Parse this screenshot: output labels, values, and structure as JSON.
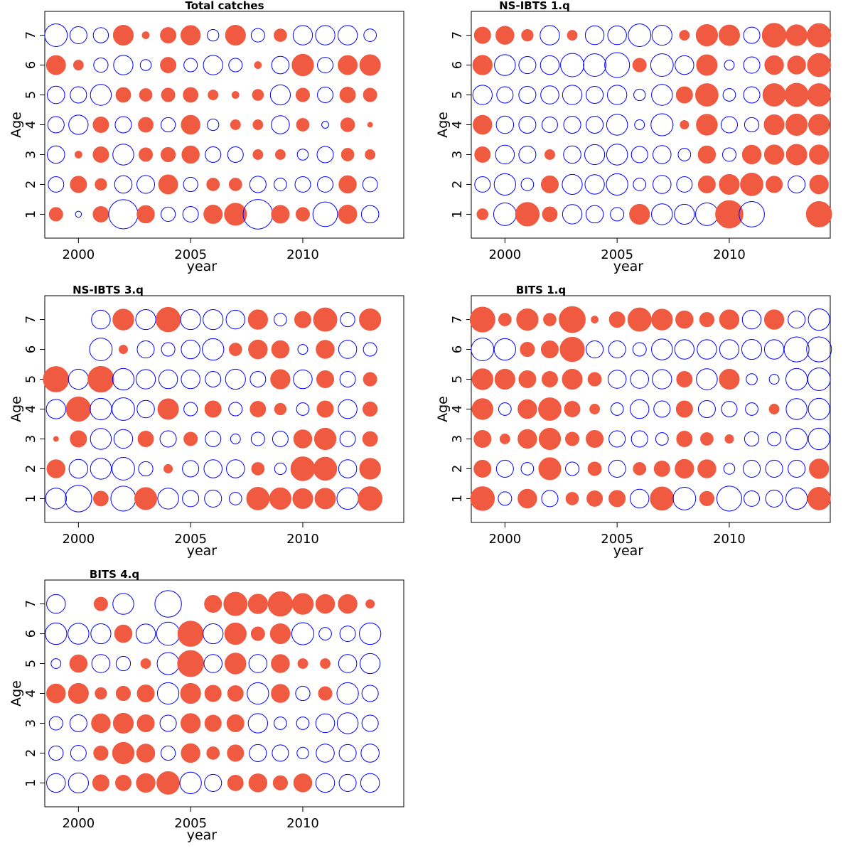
{
  "colors": {
    "positive": "#ef5a41",
    "negative": "#0000ff"
  },
  "chart_data": [
    {
      "type": "scatter",
      "title": "Total catches",
      "xlabel": "year",
      "ylabel": "Age",
      "xlim": [
        1998.5,
        2014.5
      ],
      "ylim": [
        0.2,
        7.8
      ],
      "xticks": [
        2000,
        2005,
        2010
      ],
      "yticks": [
        1,
        2,
        3,
        4,
        5,
        6,
        7
      ],
      "years": [
        1999,
        2000,
        2001,
        2002,
        2003,
        2004,
        2005,
        2006,
        2007,
        2008,
        2009,
        2010,
        2011,
        2012,
        2013
      ],
      "ages": [
        1,
        2,
        3,
        4,
        5,
        6,
        7
      ],
      "residuals": [
        [
          0.15,
          -0.03,
          0.2,
          -0.7,
          0.25,
          -0.17,
          -0.2,
          0.28,
          0.4,
          -0.72,
          0.26,
          0.15,
          -0.5,
          0.28,
          -0.25
        ],
        [
          -0.2,
          0.22,
          0.11,
          -0.25,
          -0.26,
          0.3,
          -0.17,
          0.13,
          0.13,
          -0.22,
          -0.13,
          -0.2,
          -0.2,
          0.25,
          -0.18
        ],
        [
          -0.25,
          0.04,
          0.2,
          -0.36,
          0.15,
          0.17,
          0.25,
          -0.2,
          -0.2,
          0.08,
          0.08,
          -0.1,
          -0.22,
          0.13,
          0.08
        ],
        [
          -0.22,
          -0.31,
          0.2,
          -0.22,
          0.18,
          -0.17,
          0.29,
          -0.11,
          0.08,
          0.08,
          -0.27,
          0.13,
          -0.04,
          0.16,
          0.02
        ],
        [
          -0.25,
          -0.22,
          -0.36,
          0.18,
          0.13,
          0.15,
          0.18,
          0.08,
          0.04,
          0.1,
          -0.33,
          0.15,
          -0.2,
          0.2,
          0.15
        ],
        [
          0.3,
          0.08,
          -0.17,
          -0.31,
          -0.1,
          0.2,
          -0.15,
          -0.31,
          -0.15,
          0.04,
          -0.25,
          0.38,
          -0.2,
          0.3,
          0.35
        ],
        [
          -0.42,
          -0.24,
          -0.19,
          0.33,
          0.04,
          0.2,
          0.31,
          -0.11,
          0.33,
          -0.15,
          0.13,
          -0.31,
          -0.31,
          -0.31,
          -0.13
        ]
      ]
    },
    {
      "type": "scatter",
      "title": "NS-IBTS 1.q",
      "xlabel": "year",
      "ylabel": "Age",
      "xlim": [
        1998.5,
        2014.5
      ],
      "ylim": [
        0.2,
        7.8
      ],
      "xticks": [
        2000,
        2005,
        2010
      ],
      "yticks": [
        1,
        2,
        3,
        4,
        5,
        6,
        7
      ],
      "years": [
        1999,
        2000,
        2001,
        2002,
        2003,
        2004,
        2005,
        2006,
        2007,
        2008,
        2009,
        2010,
        2011,
        2012,
        2013,
        2014
      ],
      "ages": [
        1,
        2,
        3,
        4,
        5,
        6,
        7
      ],
      "residuals": [
        [
          0.1,
          -0.42,
          0.46,
          0.18,
          -0.31,
          -0.25,
          -0.15,
          0.33,
          -0.36,
          -0.33,
          -0.42,
          0.62,
          -0.53,
          null,
          null,
          0.53
        ],
        [
          -0.2,
          -0.38,
          -0.13,
          0.24,
          -0.33,
          -0.31,
          -0.38,
          -0.13,
          -0.27,
          -0.2,
          0.24,
          0.33,
          0.42,
          0.22,
          -0.24,
          0.29
        ],
        [
          0.2,
          -0.29,
          -0.24,
          0.08,
          -0.25,
          -0.33,
          -0.36,
          -0.22,
          -0.27,
          -0.13,
          0.25,
          -0.15,
          0.29,
          0.31,
          0.35,
          0.31
        ],
        [
          0.29,
          -0.25,
          -0.24,
          -0.2,
          -0.24,
          -0.24,
          -0.36,
          -0.08,
          -0.4,
          0.06,
          0.36,
          -0.22,
          -0.17,
          0.33,
          0.38,
          0.36
        ],
        [
          -0.31,
          -0.22,
          -0.24,
          -0.27,
          -0.31,
          -0.24,
          -0.31,
          -0.11,
          -0.36,
          0.22,
          0.42,
          -0.13,
          -0.22,
          0.42,
          0.45,
          0.42
        ],
        [
          0.31,
          -0.36,
          -0.24,
          -0.29,
          -0.45,
          -0.42,
          -0.51,
          0.15,
          -0.42,
          -0.29,
          0.35,
          -0.08,
          -0.22,
          0.29,
          0.27,
          0.44
        ],
        [
          0.22,
          0.27,
          0.11,
          -0.31,
          0.08,
          -0.29,
          -0.29,
          -0.42,
          -0.33,
          0.08,
          0.38,
          0.35,
          -0.22,
          0.47,
          0.36,
          0.45
        ]
      ]
    },
    {
      "type": "scatter",
      "title": "NS-IBTS 3.q",
      "xlabel": "year",
      "ylabel": "Age",
      "xlim": [
        1998.5,
        2014.5
      ],
      "ylim": [
        0.2,
        7.8
      ],
      "xticks": [
        2000,
        2005,
        2010
      ],
      "yticks": [
        1,
        2,
        3,
        4,
        5,
        6,
        7
      ],
      "years": [
        1999,
        2000,
        2001,
        2002,
        2003,
        2004,
        2005,
        2006,
        2007,
        2008,
        2009,
        2010,
        2011,
        2012,
        2013
      ],
      "ages": [
        1,
        2,
        3,
        4,
        5,
        6,
        7
      ],
      "residuals": [
        [
          -0.36,
          -0.58,
          0.18,
          -0.51,
          0.4,
          -0.36,
          -0.22,
          -0.24,
          -0.13,
          0.42,
          0.38,
          0.33,
          0.35,
          -0.38,
          0.47
        ],
        [
          0.27,
          -0.29,
          -0.36,
          -0.42,
          -0.17,
          0.06,
          -0.22,
          -0.27,
          -0.27,
          0.13,
          -0.11,
          0.47,
          0.44,
          -0.27,
          0.36
        ],
        [
          0.02,
          0.22,
          -0.36,
          -0.29,
          0.2,
          -0.22,
          0.15,
          -0.2,
          -0.08,
          -0.15,
          -0.2,
          0.27,
          0.38,
          -0.2,
          0.18
        ],
        [
          -0.31,
          0.49,
          -0.38,
          -0.42,
          -0.25,
          0.35,
          -0.15,
          0.22,
          -0.15,
          0.2,
          0.11,
          -0.13,
          0.22,
          -0.29,
          0.17
        ],
        [
          0.53,
          -0.33,
          0.55,
          -0.38,
          -0.31,
          -0.29,
          -0.29,
          -0.2,
          -0.33,
          -0.2,
          0.31,
          -0.29,
          0.24,
          -0.2,
          0.15
        ],
        [
          null,
          null,
          -0.42,
          0.06,
          -0.24,
          -0.15,
          -0.29,
          -0.38,
          0.13,
          0.29,
          0.25,
          -0.08,
          0.27,
          -0.27,
          -0.15
        ],
        [
          null,
          null,
          -0.29,
          0.36,
          -0.33,
          0.49,
          -0.33,
          -0.33,
          -0.29,
          0.31,
          -0.13,
          0.22,
          0.45,
          -0.17,
          0.38
        ]
      ]
    },
    {
      "type": "scatter",
      "title": "BITS 1.q",
      "xlabel": "year",
      "ylabel": "Age",
      "xlim": [
        1998.5,
        2014.5
      ],
      "ylim": [
        0.2,
        7.8
      ],
      "xticks": [
        2000,
        2005,
        2010
      ],
      "yticks": [
        1,
        2,
        3,
        4,
        5,
        6,
        7
      ],
      "years": [
        1999,
        2000,
        2001,
        2002,
        2003,
        2004,
        2005,
        2006,
        2007,
        2008,
        2009,
        2010,
        2011,
        2012,
        2013,
        2014
      ],
      "ages": [
        1,
        2,
        3,
        4,
        5,
        6,
        7
      ],
      "residuals": [
        [
          0.47,
          -0.15,
          0.29,
          -0.22,
          0.13,
          0.2,
          0.22,
          -0.29,
          0.45,
          -0.42,
          0.17,
          -0.51,
          -0.2,
          -0.24,
          -0.38,
          0.42
        ],
        [
          0.24,
          -0.24,
          -0.13,
          0.4,
          -0.15,
          0.15,
          -0.24,
          0.13,
          0.2,
          0.29,
          0.27,
          -0.1,
          -0.24,
          -0.24,
          -0.24,
          0.31
        ],
        [
          0.24,
          0.08,
          0.29,
          0.38,
          0.15,
          0.24,
          -0.22,
          -0.22,
          -0.13,
          0.2,
          0.13,
          0.06,
          -0.17,
          -0.15,
          -0.38,
          -0.38
        ],
        [
          0.36,
          -0.13,
          0.29,
          0.42,
          0.2,
          0.08,
          -0.13,
          -0.29,
          -0.22,
          0.22,
          -0.24,
          -0.2,
          -0.13,
          0.08,
          -0.36,
          -0.38
        ],
        [
          0.36,
          0.33,
          0.24,
          0.2,
          0.33,
          0.15,
          -0.27,
          -0.27,
          -0.31,
          0.2,
          -0.36,
          0.33,
          -0.1,
          -0.08,
          -0.38,
          -0.42
        ],
        [
          -0.42,
          -0.38,
          0.17,
          0.24,
          0.49,
          -0.24,
          -0.24,
          -0.15,
          -0.36,
          -0.31,
          -0.31,
          -0.31,
          -0.33,
          -0.31,
          -0.51,
          -0.51
        ],
        [
          0.51,
          0.13,
          0.38,
          0.13,
          0.56,
          0.04,
          0.2,
          0.45,
          0.36,
          0.25,
          0.17,
          0.31,
          -0.29,
          0.31,
          -0.24,
          -0.38
        ]
      ]
    },
    {
      "type": "scatter",
      "title": "BITS 4.q",
      "xlabel": "year",
      "ylabel": "Age",
      "xlim": [
        1998.5,
        2014.5
      ],
      "ylim": [
        0.2,
        7.8
      ],
      "xticks": [
        2000,
        2005,
        2010
      ],
      "yticks": [
        1,
        2,
        3,
        4,
        5,
        6,
        7
      ],
      "years": [
        1999,
        2000,
        2001,
        2002,
        2003,
        2004,
        2005,
        2006,
        2007,
        2008,
        2009,
        2010,
        2011,
        2012,
        2013
      ],
      "ages": [
        1,
        2,
        3,
        4,
        5,
        6,
        7
      ],
      "residuals": [
        [
          -0.29,
          -0.33,
          0.22,
          0.2,
          0.29,
          0.42,
          -0.38,
          -0.24,
          0.2,
          0.27,
          0.17,
          0.27,
          -0.29,
          -0.24,
          -0.29
        ],
        [
          -0.17,
          -0.2,
          0.17,
          0.38,
          0.27,
          -0.17,
          0.29,
          0.13,
          0.22,
          -0.24,
          -0.22,
          -0.11,
          -0.27,
          -0.24,
          -0.27
        ],
        [
          -0.15,
          -0.24,
          0.29,
          0.33,
          0.24,
          -0.22,
          0.31,
          0.22,
          0.24,
          -0.31,
          -0.13,
          -0.13,
          -0.29,
          -0.36,
          -0.22
        ],
        [
          0.29,
          0.33,
          0.11,
          0.17,
          0.24,
          -0.38,
          0.33,
          0.22,
          0.2,
          -0.38,
          0.27,
          -0.17,
          0.15,
          -0.38,
          -0.22
        ],
        [
          -0.08,
          0.25,
          -0.27,
          -0.17,
          0.08,
          -0.4,
          0.56,
          -0.27,
          0.36,
          -0.27,
          0.27,
          0.08,
          0.08,
          -0.27,
          -0.33
        ],
        [
          -0.38,
          -0.36,
          -0.33,
          0.25,
          -0.31,
          -0.44,
          0.53,
          -0.33,
          0.38,
          0.15,
          0.33,
          -0.4,
          -0.13,
          -0.2,
          -0.38
        ],
        [
          -0.29,
          null,
          0.15,
          -0.36,
          null,
          -0.58,
          null,
          0.24,
          0.45,
          0.31,
          0.49,
          0.36,
          0.29,
          0.29,
          0.06
        ]
      ]
    }
  ]
}
